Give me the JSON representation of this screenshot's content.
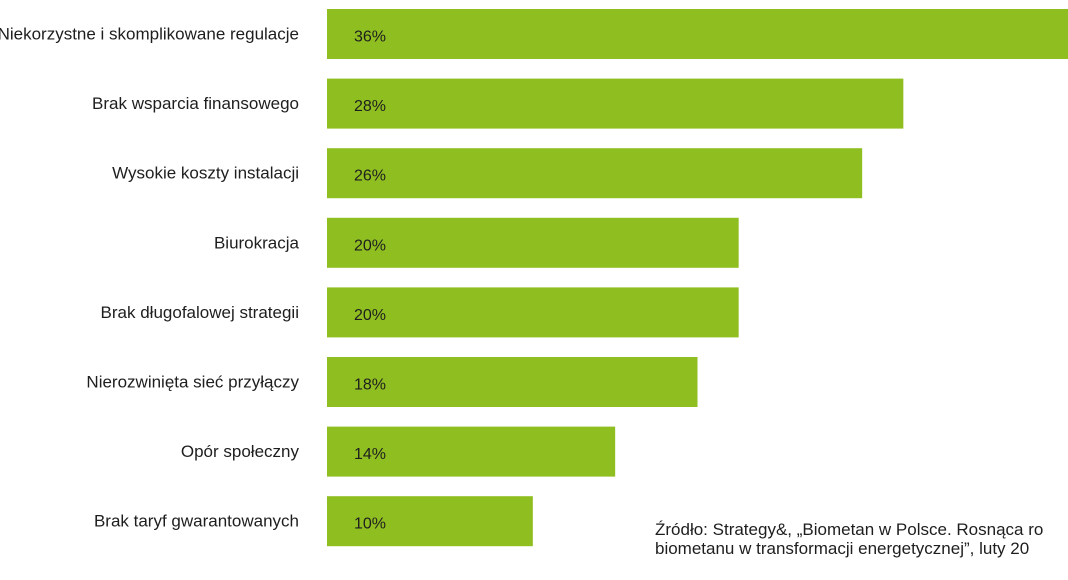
{
  "chart_data": {
    "type": "bar",
    "orientation": "horizontal",
    "categories": [
      "Niekorzystne i skomplikowane regulacje",
      "Brak wsparcia finansowego",
      "Wysokie koszty instalacji",
      "Biurokracja",
      "Brak długofalowej strategii",
      "Nierozwinięta sieć przyłączy",
      "Opór społeczny",
      "Brak taryf gwarantowanych"
    ],
    "values": [
      36,
      28,
      26,
      20,
      20,
      18,
      14,
      10
    ],
    "value_labels": [
      "36%",
      "28%",
      "26%",
      "20%",
      "20%",
      "18%",
      "14%",
      "10%"
    ],
    "bar_color": "#8fbe21",
    "xlim": [
      0,
      36
    ],
    "grid": false,
    "legend": false
  },
  "source": {
    "line1": "Źródło: Strategy&, „Biometan w Polsce. Rosnąca ro",
    "line2": "biometanu w transformacji energetycznej”, luty 20"
  }
}
